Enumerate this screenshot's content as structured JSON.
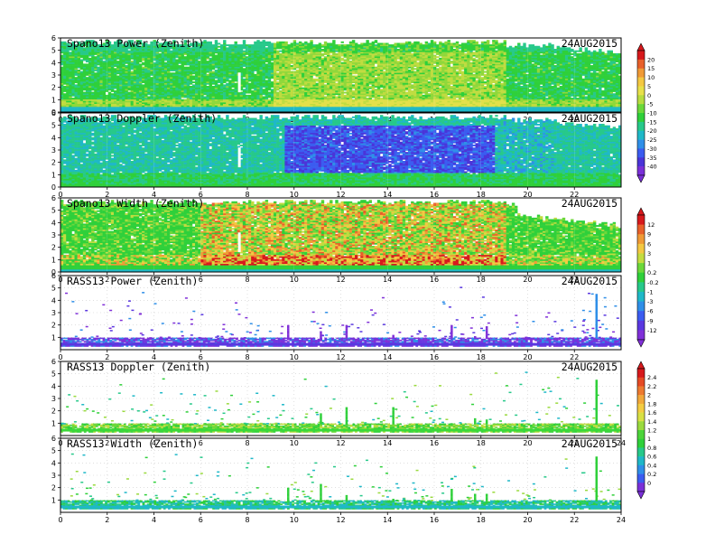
{
  "chart_data": [
    {
      "type": "heatmap",
      "title": "Spano13 Power (Zenith)",
      "date": "24AUG2015",
      "xlim": [
        0,
        24
      ],
      "ylim": [
        0,
        6
      ],
      "xticks": [
        "0",
        "2",
        "4",
        "6",
        "8",
        "10",
        "12",
        "14",
        "16",
        "18",
        "20",
        "22"
      ],
      "yticks": [
        "0",
        "1",
        "2",
        "3",
        "4",
        "5",
        "6"
      ],
      "field": "power",
      "colorbar_group": "spano_power_doppler"
    },
    {
      "type": "heatmap",
      "title": "Spano13 Doppler (Zenith)",
      "date": "24AUG2015",
      "xlim": [
        0,
        24
      ],
      "ylim": [
        0,
        6
      ],
      "xticks": [
        "0",
        "2",
        "4",
        "6",
        "8",
        "10",
        "12",
        "14",
        "16",
        "18",
        "20",
        "22"
      ],
      "yticks": [
        "0",
        "1",
        "2",
        "3",
        "4",
        "5",
        "6"
      ],
      "field": "doppler",
      "colorbar_group": "spano_power_doppler"
    },
    {
      "type": "heatmap",
      "title": "Spano13 Width (Zenith)",
      "date": "24AUG2015",
      "xlim": [
        0,
        24
      ],
      "ylim": [
        0,
        6
      ],
      "xticks": [
        "0",
        "2",
        "4",
        "6",
        "8",
        "10",
        "12",
        "14",
        "16",
        "18",
        "20",
        "22"
      ],
      "yticks": [
        "0",
        "1",
        "2",
        "3",
        "4",
        "5",
        "6"
      ],
      "field": "width",
      "colorbar_group": "spano_width_rass_power"
    },
    {
      "type": "scatter",
      "title": "RASS13 Power (Zenith)",
      "date": "24AUG2015",
      "xlim": [
        0,
        24
      ],
      "ylim": [
        0,
        6
      ],
      "xticks": [
        "0",
        "2",
        "4",
        "6",
        "8",
        "10",
        "12",
        "14",
        "16",
        "18",
        "20",
        "22"
      ],
      "yticks": [
        "1",
        "2",
        "3",
        "4",
        "5",
        "6"
      ],
      "field": "rass_power",
      "colorbar_group": "spano_width_rass_power"
    },
    {
      "type": "scatter",
      "title": "RASS13 Doppler (Zenith)",
      "date": "24AUG2015",
      "xlim": [
        0,
        24
      ],
      "ylim": [
        0,
        6
      ],
      "xticks": [
        "0",
        "2",
        "4",
        "6",
        "8",
        "10",
        "12",
        "14",
        "16",
        "18",
        "20",
        "22",
        "24"
      ],
      "yticks": [
        "1",
        "2",
        "3",
        "4",
        "5",
        "6"
      ],
      "field": "rass_doppler",
      "colorbar_group": "rass_doppler_width"
    },
    {
      "type": "scatter",
      "title": "RASS13 Width (Zenith)",
      "date": "24AUG2015",
      "xlim": [
        0,
        24
      ],
      "ylim": [
        0,
        6
      ],
      "xticks": [
        "0",
        "2",
        "4",
        "6",
        "8",
        "10",
        "12",
        "14",
        "16",
        "18",
        "20",
        "22",
        "24"
      ],
      "yticks": [
        "1",
        "2",
        "3",
        "4",
        "5",
        "6"
      ],
      "field": "rass_width",
      "colorbar_group": "rass_doppler_width"
    }
  ],
  "colorbars": [
    {
      "name": "spano_power_doppler",
      "labels": [
        "20",
        "15",
        "10",
        "5",
        "0",
        "-5",
        "-10",
        "-15",
        "-20",
        "-25",
        "-30",
        "-35",
        "-40"
      ],
      "colors": [
        "#d7191c",
        "#e8602a",
        "#f09a36",
        "#f4c842",
        "#e8e04a",
        "#b8dc40",
        "#6cd83a",
        "#2fd03a",
        "#27c98a",
        "#1fb8c8",
        "#2f8fe8",
        "#3b5cf0",
        "#4a34d8",
        "#7a30d8"
      ]
    },
    {
      "name": "spano_width_rass_power",
      "labels": [
        "12",
        "9",
        "6",
        "3",
        "1",
        "0.2",
        "-0.2",
        "-1",
        "-3",
        "-6",
        "-9",
        "-12"
      ],
      "colors": [
        "#d7191c",
        "#e8602a",
        "#f09a36",
        "#f4c842",
        "#c4dc40",
        "#6cd83a",
        "#2fd03a",
        "#27c98a",
        "#1fb8c8",
        "#2f8fe8",
        "#3b5cf0",
        "#5a38e0",
        "#8030d8"
      ]
    },
    {
      "name": "rass_doppler_width",
      "labels": [
        "2.4",
        "2.2",
        "2",
        "1.8",
        "1.6",
        "1.4",
        "1.2",
        "1",
        "0.8",
        "0.6",
        "0.4",
        "0.2",
        "0"
      ],
      "colors": [
        "#d7191c",
        "#e64a24",
        "#ee7a30",
        "#f2a83a",
        "#f4cc42",
        "#d8e044",
        "#9ada3e",
        "#4cd43a",
        "#2fd03a",
        "#27c98a",
        "#1fb8c8",
        "#2f8fe8",
        "#3b5cf0",
        "#7a30d8"
      ]
    }
  ]
}
